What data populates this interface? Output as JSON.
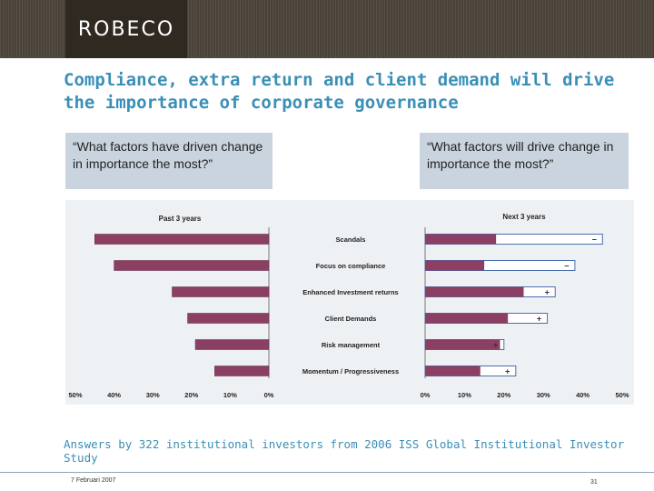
{
  "header": {
    "logo": "ROBECO"
  },
  "slide": {
    "title": "Compliance, extra return and client demand will drive the importance of corporate governance",
    "quote_left": "“What factors have driven change in importance the most?”",
    "quote_right": "“What factors will drive change in importance the most?”",
    "footnote": "Answers by 322 institutional investors from 2006 ISS Global Institutional Investor Study",
    "date": "7 Februari 2007",
    "page": "31"
  },
  "colors": {
    "bar": "#8a3f63",
    "title": "#3a8fb7",
    "panel": "#eef1f4"
  },
  "chart_data": [
    {
      "type": "bar",
      "orientation": "horizontal-reversed",
      "title": "Past 3 years",
      "categories": [
        "Scandals",
        "Focus on compliance",
        "Enhanced Investment returns",
        "Client Demands",
        "Risk management",
        "Momentum / Progressiveness"
      ],
      "values": [
        45,
        40,
        25,
        21,
        19,
        14
      ],
      "xlim": [
        0,
        50
      ],
      "tick_labels": [
        "50%",
        "40%",
        "30%",
        "20%",
        "10%",
        "0%"
      ]
    },
    {
      "type": "bar",
      "orientation": "horizontal",
      "title": "Next 3 years",
      "categories": [
        "Scandals",
        "Focus on compliance",
        "Enhanced Investment returns",
        "Client Demands",
        "Risk management",
        "Momentum / Progressiveness"
      ],
      "series": [
        {
          "values": [
            18,
            15,
            25,
            21,
            19,
            14
          ]
        },
        {
          "values": [
            45,
            38,
            33,
            31,
            20,
            23
          ]
        }
      ],
      "change_markers": [
        "−",
        "−",
        "+",
        "+",
        "+",
        "+"
      ],
      "xlim": [
        0,
        50
      ],
      "tick_labels": [
        "0%",
        "10%",
        "20%",
        "30%",
        "40%",
        "50%"
      ]
    }
  ]
}
